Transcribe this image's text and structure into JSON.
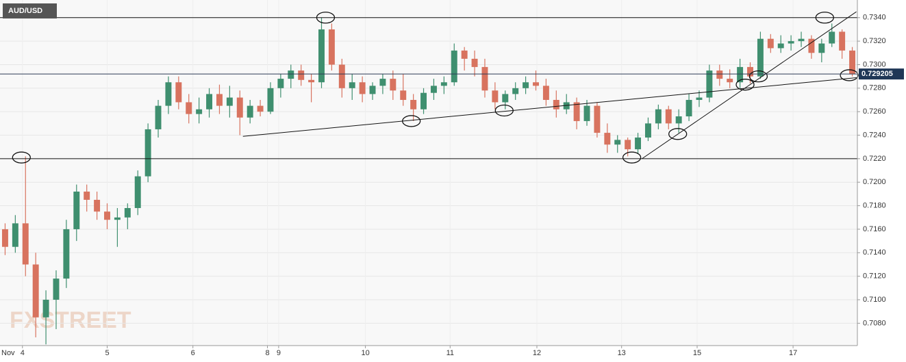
{
  "chart_data": {
    "type": "candlestick",
    "title": "AUD/USD",
    "watermark": "FXSTREET",
    "month_label": "Nov",
    "up_color": "#3f8f6f",
    "down_color": "#d8735f",
    "grid": true,
    "xlim": [
      -0.5,
      83.5
    ],
    "ylim": [
      0.7061,
      0.7355
    ],
    "xticks": [
      {
        "value": 1.7,
        "label": "4"
      },
      {
        "value": 10.0,
        "label": "5"
      },
      {
        "value": 18.4,
        "label": "6"
      },
      {
        "value": 25.7,
        "label": "8"
      },
      {
        "value": 26.8,
        "label": "9"
      },
      {
        "value": 35.3,
        "label": "10"
      },
      {
        "value": 43.6,
        "label": "11"
      },
      {
        "value": 52.1,
        "label": "12"
      },
      {
        "value": 60.4,
        "label": "13"
      },
      {
        "value": 67.8,
        "label": "15"
      },
      {
        "value": 77.2,
        "label": "17"
      }
    ],
    "yticks": [
      {
        "value": 0.708,
        "label": "0.7080"
      },
      {
        "value": 0.71,
        "label": "0.7100"
      },
      {
        "value": 0.712,
        "label": "0.7120"
      },
      {
        "value": 0.714,
        "label": "0.7140"
      },
      {
        "value": 0.716,
        "label": "0.7160"
      },
      {
        "value": 0.718,
        "label": "0.7180"
      },
      {
        "value": 0.72,
        "label": "0.7200"
      },
      {
        "value": 0.722,
        "label": "0.7220"
      },
      {
        "value": 0.724,
        "label": "0.7240"
      },
      {
        "value": 0.726,
        "label": "0.7260"
      },
      {
        "value": 0.728,
        "label": "0.7280"
      },
      {
        "value": 0.73,
        "label": "0.7300"
      },
      {
        "value": 0.732,
        "label": "0.7320"
      },
      {
        "value": 0.734,
        "label": "0.7340"
      }
    ],
    "current_price": 0.729205,
    "hlines": [
      0.734,
      0.722
    ],
    "trendlines": [
      {
        "x": [
          23.3,
          83.5
        ],
        "y": [
          0.7239,
          0.7289
        ]
      },
      {
        "x": [
          62.4,
          83.4
        ],
        "y": [
          0.722,
          0.7345
        ]
      }
    ],
    "markers": {
      "x": [
        31.4,
        1.6,
        39.8,
        48.9,
        61.4,
        65.9,
        72.5,
        73.8,
        80.3,
        82.7
      ],
      "y": [
        0.734,
        0.7221,
        0.7252,
        0.7261,
        0.7221,
        0.7241,
        0.7283,
        0.729,
        0.734,
        0.7291
      ]
    },
    "open": [
      0.716,
      0.7145,
      0.7165,
      0.713,
      0.7085,
      0.71,
      0.7118,
      0.716,
      0.7192,
      0.7185,
      0.7175,
      0.7168,
      0.717,
      0.7178,
      0.7205,
      0.7245,
      0.7265,
      0.7285,
      0.7268,
      0.7258,
      0.7262,
      0.7275,
      0.7265,
      0.7272,
      0.7255,
      0.7265,
      0.726,
      0.728,
      0.7288,
      0.7295,
      0.7287,
      0.7285,
      0.733,
      0.73,
      0.728,
      0.7285,
      0.7275,
      0.7282,
      0.7288,
      0.7278,
      0.727,
      0.7262,
      0.7276,
      0.7282,
      0.7285,
      0.7312,
      0.7305,
      0.7298,
      0.7278,
      0.7268,
      0.7275,
      0.728,
      0.7285,
      0.7282,
      0.727,
      0.7262,
      0.7268,
      0.7252,
      0.7265,
      0.7242,
      0.7232,
      0.7236,
      0.7228,
      0.7238,
      0.725,
      0.7262,
      0.725,
      0.7256,
      0.727,
      0.7272,
      0.7295,
      0.7288,
      0.7285,
      0.7298,
      0.729,
      0.7322,
      0.7314,
      0.7318,
      0.732,
      0.7322,
      0.731,
      0.7318,
      0.7328,
      0.7312
    ],
    "high": [
      0.7165,
      0.7172,
      0.7222,
      0.714,
      0.7108,
      0.7125,
      0.7168,
      0.7198,
      0.7198,
      0.7192,
      0.7182,
      0.7178,
      0.7182,
      0.721,
      0.725,
      0.727,
      0.729,
      0.729,
      0.7275,
      0.7272,
      0.728,
      0.7283,
      0.7282,
      0.7278,
      0.727,
      0.727,
      0.7285,
      0.7292,
      0.73,
      0.73,
      0.7292,
      0.734,
      0.7335,
      0.7305,
      0.7292,
      0.729,
      0.7285,
      0.7292,
      0.7295,
      0.7292,
      0.7275,
      0.728,
      0.7288,
      0.729,
      0.7318,
      0.7315,
      0.7312,
      0.7305,
      0.7285,
      0.7278,
      0.7285,
      0.729,
      0.7295,
      0.7288,
      0.7278,
      0.7275,
      0.7272,
      0.727,
      0.7268,
      0.725,
      0.724,
      0.7238,
      0.7242,
      0.7255,
      0.7266,
      0.7265,
      0.7262,
      0.7275,
      0.7278,
      0.73,
      0.73,
      0.7296,
      0.7305,
      0.7302,
      0.7328,
      0.7326,
      0.7325,
      0.7325,
      0.7328,
      0.7325,
      0.7322,
      0.7335,
      0.733,
      0.7315
    ],
    "low": [
      0.7138,
      0.714,
      0.712,
      0.7068,
      0.7062,
      0.7075,
      0.711,
      0.715,
      0.7175,
      0.7168,
      0.716,
      0.7145,
      0.716,
      0.7172,
      0.72,
      0.7238,
      0.7258,
      0.7262,
      0.725,
      0.725,
      0.7255,
      0.7258,
      0.7255,
      0.724,
      0.725,
      0.7256,
      0.7258,
      0.7272,
      0.728,
      0.7282,
      0.7268,
      0.728,
      0.7295,
      0.7272,
      0.727,
      0.7268,
      0.727,
      0.7275,
      0.727,
      0.7265,
      0.7252,
      0.7258,
      0.727,
      0.7275,
      0.7282,
      0.7295,
      0.729,
      0.7272,
      0.7262,
      0.7262,
      0.727,
      0.7275,
      0.7278,
      0.7265,
      0.7255,
      0.7258,
      0.7245,
      0.7248,
      0.7238,
      0.7225,
      0.7225,
      0.7222,
      0.7224,
      0.7235,
      0.7245,
      0.7245,
      0.7242,
      0.7252,
      0.7264,
      0.7268,
      0.7282,
      0.728,
      0.728,
      0.7284,
      0.7288,
      0.731,
      0.731,
      0.7312,
      0.7315,
      0.7305,
      0.7302,
      0.7315,
      0.7305,
      0.729
    ],
    "close": [
      0.7145,
      0.7165,
      0.713,
      0.7085,
      0.71,
      0.7118,
      0.716,
      0.7192,
      0.7185,
      0.7175,
      0.7168,
      0.717,
      0.7178,
      0.7205,
      0.7245,
      0.7265,
      0.7285,
      0.7268,
      0.7258,
      0.7262,
      0.7275,
      0.7265,
      0.7272,
      0.7255,
      0.7265,
      0.726,
      0.728,
      0.7288,
      0.7295,
      0.7287,
      0.7285,
      0.733,
      0.73,
      0.728,
      0.7285,
      0.7275,
      0.7282,
      0.7288,
      0.7278,
      0.727,
      0.7262,
      0.7276,
      0.7282,
      0.7285,
      0.7312,
      0.7305,
      0.7298,
      0.7278,
      0.7268,
      0.7275,
      0.728,
      0.7285,
      0.7282,
      0.727,
      0.7262,
      0.7268,
      0.7252,
      0.7265,
      0.7242,
      0.7232,
      0.7236,
      0.7228,
      0.7238,
      0.725,
      0.7262,
      0.725,
      0.7256,
      0.727,
      0.7272,
      0.7295,
      0.7288,
      0.7285,
      0.7298,
      0.729,
      0.7322,
      0.7314,
      0.7318,
      0.732,
      0.7322,
      0.731,
      0.7318,
      0.7328,
      0.7312,
      0.7292
    ]
  }
}
